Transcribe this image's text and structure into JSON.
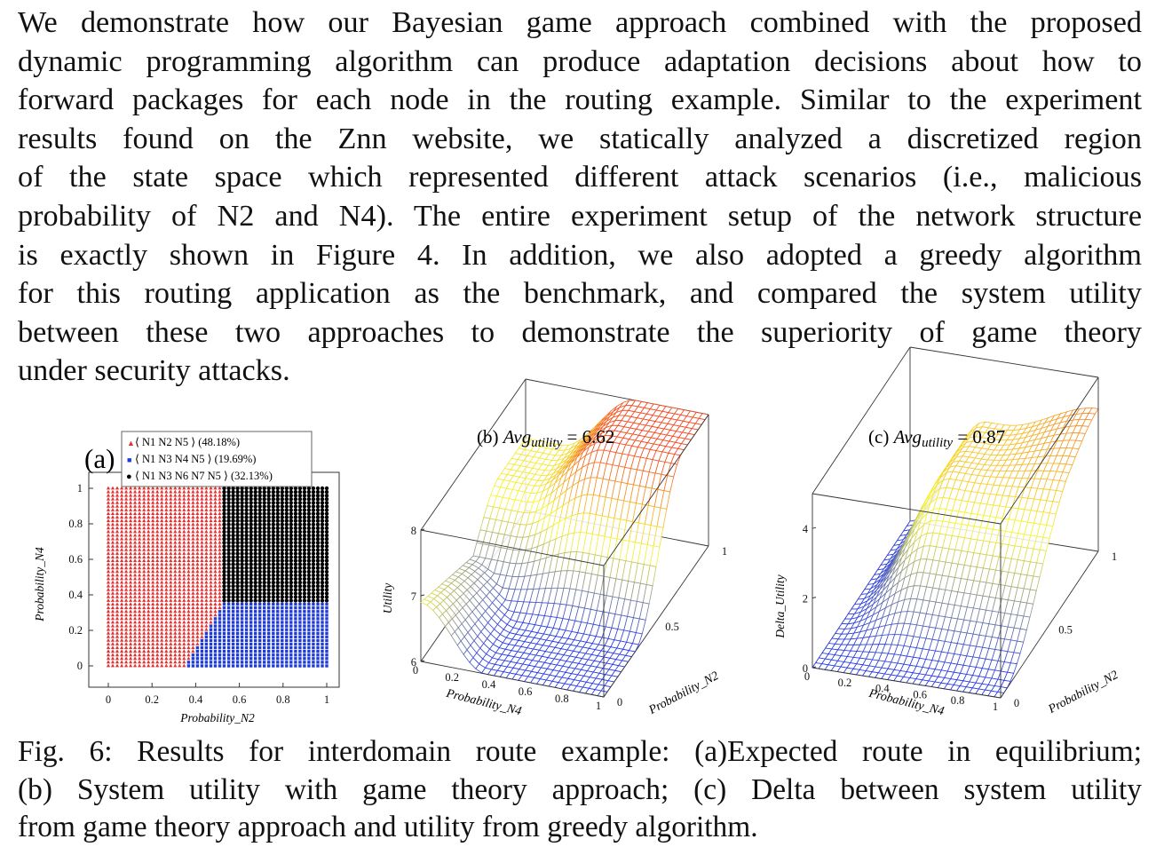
{
  "paragraph": {
    "lines": [
      "We demonstrate how our Bayesian game approach combined with the proposed",
      "dynamic programming algorithm can produce adaptation decisions about how to",
      "forward packages for each node in the routing example. Similar to the experiment",
      "results found on the Znn website, we statically analyzed a discretized region",
      "of the state space which represented different attack scenarios (i.e., malicious",
      "probability of N2 and N4). The entire experiment setup of the network structure",
      "is exactly shown in Figure 4. In addition, we also adopted a greedy algorithm",
      "for this routing application as the benchmark, and compared the system utility",
      "between these two approaches to demonstrate the superiority of game theory",
      "under security attacks."
    ]
  },
  "figure": {
    "panel_a": {
      "label": "(a)",
      "legend": [
        {
          "text": "⟨ N1 N2 N5 ⟩ (48.18%)",
          "color": "#e53030",
          "marker": "▲"
        },
        {
          "text": "⟨ N1 N3 N4 N5 ⟩ (19.69%)",
          "color": "#1f3bd6",
          "marker": "■"
        },
        {
          "text": "⟨ N1 N3 N6 N7 N5 ⟩ (32.13%)",
          "color": "#000000",
          "marker": "●"
        }
      ],
      "xlabel": "Probability_N2",
      "ylabel": "Probability_N4",
      "xticks": [
        "0",
        "0.2",
        "0.4",
        "0.6",
        "0.8",
        "1"
      ],
      "yticks": [
        "0",
        "0.2",
        "0.4",
        "0.6",
        "0.8",
        "1"
      ]
    },
    "panel_b": {
      "title_prefix": "(b) ",
      "title_avg": "Avg",
      "title_sub": "utility",
      "title_value": " = 6.62",
      "zlabel": "Utility",
      "xlabel": "Probability_N4",
      "ylabel": "Probability_N2",
      "zticks": [
        "6",
        "7",
        "8"
      ],
      "xticks": [
        "0",
        "0.2",
        "0.4",
        "0.6",
        "0.8",
        "1"
      ],
      "yticks": [
        "0",
        "0.5",
        "1"
      ]
    },
    "panel_c": {
      "title_prefix": "(c) ",
      "title_avg": "Avg",
      "title_sub": "utility",
      "title_value": " = 0.87",
      "zlabel": "Delta_Utility",
      "xlabel": "Probability_N4",
      "ylabel": "Probability_N2",
      "zticks": [
        "0",
        "2",
        "4"
      ],
      "xticks": [
        "0",
        "0.2",
        "0.4",
        "0.6",
        "0.8",
        "1"
      ],
      "yticks": [
        "0",
        "0.5",
        "1"
      ]
    }
  },
  "chart_data": [
    {
      "type": "scatter",
      "title": "(a)",
      "xlabel": "Probability_N2",
      "ylabel": "Probability_N4",
      "xlim": [
        0,
        1
      ],
      "ylim": [
        0,
        1
      ],
      "series": [
        {
          "name": "⟨ N1 N2 N5 ⟩ (48.18%)",
          "region": "x < 0.52 for y >= 0.35; x < 0.35 + 0.52*y for y < 0.35"
        },
        {
          "name": "⟨ N1 N3 N4 N5 ⟩ (19.69%)",
          "region": "y < 0.35 and x >= 0.35 + 0.52*y"
        },
        {
          "name": "⟨ N1 N3 N6 N7 N5 ⟩ (32.13%)",
          "region": "x >= 0.52 and y >= 0.35"
        }
      ]
    },
    {
      "type": "surface",
      "title": "(b) Avg_utility = 6.62",
      "xlabel": "Probability_N4",
      "ylabel": "Probability_N2",
      "zlabel": "Utility",
      "zlim": [
        6,
        8
      ]
    },
    {
      "type": "surface",
      "title": "(c) Avg_utility = 0.87",
      "xlabel": "Probability_N4",
      "ylabel": "Probability_N2",
      "zlabel": "Delta_Utility",
      "zlim": [
        0,
        5
      ]
    }
  ],
  "caption": {
    "lines": [
      "Fig. 6: Results for interdomain route example: (a)Expected route in equilibrium;",
      "(b) System utility with game theory approach; (c) Delta between system utility",
      "from game theory approach and utility from greedy algorithm."
    ]
  }
}
